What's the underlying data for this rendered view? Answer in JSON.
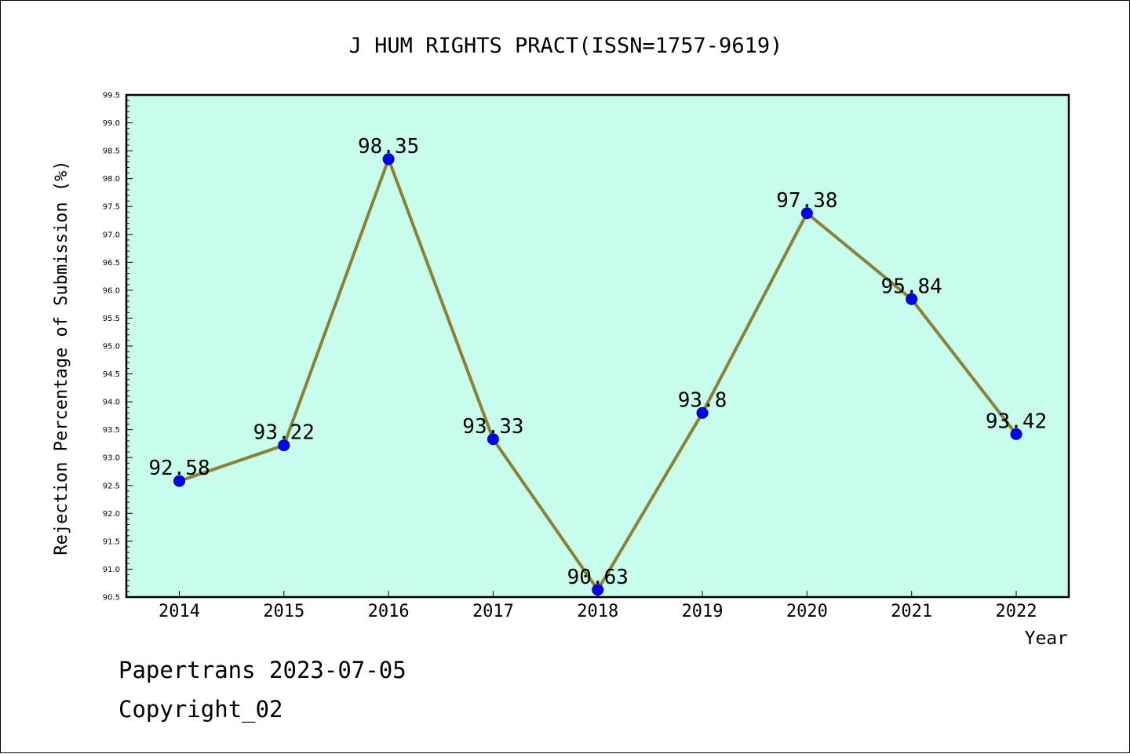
{
  "chart_data": {
    "type": "line",
    "title": "J HUM RIGHTS PRACT(ISSN=1757-9619)",
    "xlabel": "Year",
    "ylabel": "Rejection Percentage of Submission (%)",
    "categories": [
      "2014",
      "2015",
      "2016",
      "2017",
      "2018",
      "2019",
      "2020",
      "2021",
      "2022"
    ],
    "values": [
      92.58,
      93.22,
      98.35,
      93.33,
      90.63,
      93.8,
      97.38,
      95.84,
      93.42
    ],
    "data_labels": [
      "92.58",
      "93.22",
      "98.35",
      "93.33",
      "90.63",
      "93.8",
      "97.38",
      "95.84",
      "93.42"
    ],
    "ylim": [
      90.5,
      99.5
    ],
    "yticks": [
      "90.5",
      "91.0",
      "91.5",
      "92.0",
      "92.5",
      "93.0",
      "93.5",
      "94.0",
      "94.5",
      "95.0",
      "95.5",
      "96.0",
      "96.5",
      "97.0",
      "97.5",
      "98.0",
      "98.5",
      "99.0",
      "99.5"
    ],
    "grid": false,
    "colors": {
      "plot_background": "#c8fcec",
      "line": "#8b8238",
      "marker": "#0000ff"
    }
  },
  "footer": {
    "line1": "Papertrans 2023-07-05",
    "line2": "Copyright_02"
  }
}
